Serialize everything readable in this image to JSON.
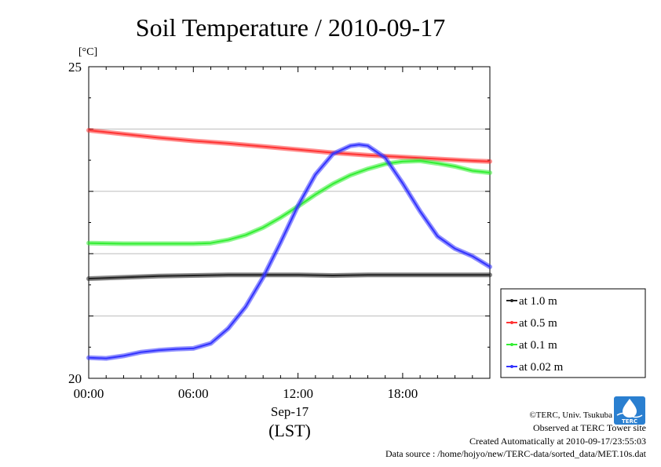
{
  "chart_data": {
    "type": "line",
    "title": "Soil Temperature / 2010-09-17",
    "ylabel": "[°C]",
    "xlabel_date": "Sep-17",
    "xlabel_unit": "(LST)",
    "xlim": [
      0,
      23
    ],
    "ylim": [
      20,
      25
    ],
    "y_ticks": [
      "25",
      "20"
    ],
    "x_ticks": [
      {
        "hour": 0,
        "label": "00:00"
      },
      {
        "hour": 6,
        "label": "06:00"
      },
      {
        "hour": 12,
        "label": "12:00"
      },
      {
        "hour": 18,
        "label": "18:00"
      }
    ],
    "grid": true,
    "legend_position": "right",
    "series": [
      {
        "name": "at 1.0 m",
        "color": "#222222",
        "points": [
          [
            0,
            21.6
          ],
          [
            2,
            21.62
          ],
          [
            4,
            21.64
          ],
          [
            6,
            21.65
          ],
          [
            8,
            21.66
          ],
          [
            10,
            21.66
          ],
          [
            12,
            21.66
          ],
          [
            14,
            21.65
          ],
          [
            16,
            21.66
          ],
          [
            18,
            21.66
          ],
          [
            20,
            21.66
          ],
          [
            22,
            21.66
          ],
          [
            23,
            21.66
          ]
        ]
      },
      {
        "name": "at 0.5 m",
        "color": "#ff3333",
        "points": [
          [
            0,
            23.98
          ],
          [
            2,
            23.92
          ],
          [
            4,
            23.86
          ],
          [
            6,
            23.81
          ],
          [
            8,
            23.77
          ],
          [
            10,
            23.72
          ],
          [
            12,
            23.67
          ],
          [
            14,
            23.62
          ],
          [
            16,
            23.58
          ],
          [
            18,
            23.55
          ],
          [
            20,
            23.52
          ],
          [
            22,
            23.49
          ],
          [
            23,
            23.48
          ]
        ]
      },
      {
        "name": "at 0.1 m",
        "color": "#33ee33",
        "points": [
          [
            0,
            22.17
          ],
          [
            2,
            22.16
          ],
          [
            4,
            22.16
          ],
          [
            6,
            22.16
          ],
          [
            7,
            22.17
          ],
          [
            8,
            22.22
          ],
          [
            9,
            22.3
          ],
          [
            10,
            22.42
          ],
          [
            11,
            22.58
          ],
          [
            12,
            22.76
          ],
          [
            13,
            22.95
          ],
          [
            14,
            23.12
          ],
          [
            15,
            23.26
          ],
          [
            16,
            23.36
          ],
          [
            17,
            23.44
          ],
          [
            18,
            23.48
          ],
          [
            19,
            23.49
          ],
          [
            20,
            23.45
          ],
          [
            21,
            23.4
          ],
          [
            22,
            23.33
          ],
          [
            23,
            23.3
          ]
        ]
      },
      {
        "name": "at 0.02 m",
        "color": "#3333ff",
        "points": [
          [
            0,
            20.33
          ],
          [
            1,
            20.32
          ],
          [
            2,
            20.36
          ],
          [
            3,
            20.42
          ],
          [
            4,
            20.45
          ],
          [
            5,
            20.47
          ],
          [
            6,
            20.48
          ],
          [
            7,
            20.56
          ],
          [
            8,
            20.8
          ],
          [
            9,
            21.15
          ],
          [
            10,
            21.62
          ],
          [
            11,
            22.18
          ],
          [
            12,
            22.77
          ],
          [
            13,
            23.27
          ],
          [
            14,
            23.6
          ],
          [
            15,
            23.73
          ],
          [
            15.5,
            23.75
          ],
          [
            16,
            23.73
          ],
          [
            17,
            23.54
          ],
          [
            18,
            23.13
          ],
          [
            19,
            22.68
          ],
          [
            20,
            22.28
          ],
          [
            21,
            22.08
          ],
          [
            22,
            21.96
          ],
          [
            23,
            21.79
          ]
        ]
      }
    ]
  },
  "footer": {
    "credit": "©TERC, Univ. Tsukuba",
    "observed": "Observed at TERC Tower site",
    "created": "Created Automatically at 2010-09-17/23:55:03",
    "source": "Data source : /home/hojyo/new/TERC-data/sorted_data/MET.10s.dat"
  },
  "logo": {
    "text": "TERC"
  }
}
